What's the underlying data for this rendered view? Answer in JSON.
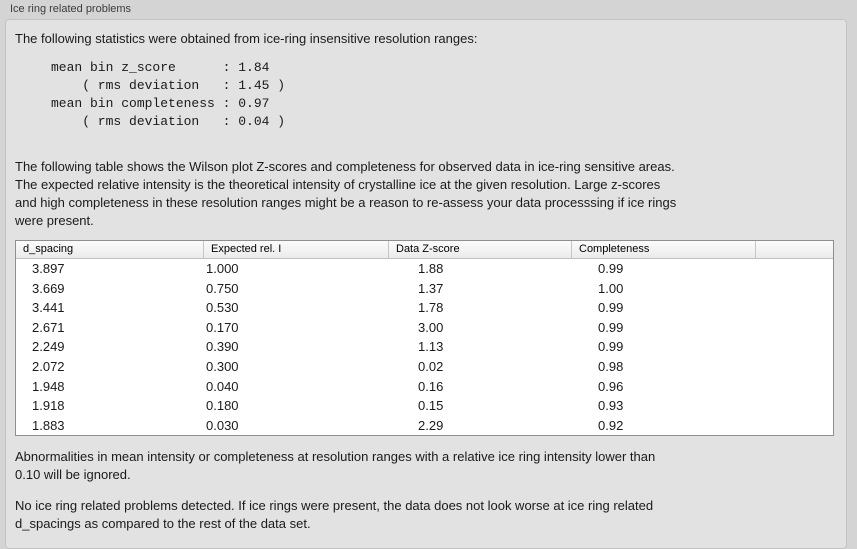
{
  "panel": {
    "title": "Ice ring related problems",
    "intro": "The following statistics were obtained from ice-ring insensitive resolution ranges:",
    "stats_block": "mean bin z_score      : 1.84\n    ( rms deviation   : 1.45 )\nmean bin completeness : 0.97\n    ( rms deviation   : 0.04 )",
    "table_description": "The following table shows the Wilson plot Z-scores and completeness for observed data in ice-ring sensitive areas.\nThe expected relative intensity is the theoretical intensity of crystalline ice at the given resolution. Large z-scores\nand high completeness in these resolution ranges might be a reason to re-assess your data processsing if ice rings\nwere present.",
    "abnormalities_note": "Abnormalities in mean intensity or completeness at resolution ranges with a relative ice ring intensity lower than\n0.10 will be ignored.",
    "conclusion": "No ice ring related problems detected. If ice rings were present, the data does not look worse at ice ring related\nd_spacings as compared to the rest of the data set."
  },
  "stats": {
    "mean_bin_z_score": "1.84",
    "z_score_rms_deviation": "1.45",
    "mean_bin_completeness": "0.97",
    "completeness_rms_deviation": "0.04"
  },
  "table": {
    "columns": [
      "d_spacing",
      "Expected rel. I",
      "Data Z-score",
      "Completeness"
    ],
    "rows": [
      [
        "3.897",
        "1.000",
        "1.88",
        "0.99"
      ],
      [
        "3.669",
        "0.750",
        "1.37",
        "1.00"
      ],
      [
        "3.441",
        "0.530",
        "1.78",
        "0.99"
      ],
      [
        "2.671",
        "0.170",
        "3.00",
        "0.99"
      ],
      [
        "2.249",
        "0.390",
        "1.13",
        "0.99"
      ],
      [
        "2.072",
        "0.300",
        "0.02",
        "0.98"
      ],
      [
        "1.948",
        "0.040",
        "0.16",
        "0.96"
      ],
      [
        "1.918",
        "0.180",
        "0.15",
        "0.93"
      ],
      [
        "1.883",
        "0.030",
        "2.29",
        "0.92"
      ]
    ]
  },
  "colors": {
    "outer_bg": "#d4d4d4",
    "panel_bg": "#e2e2e2",
    "table_bg": "#ffffff",
    "table_border": "#8f8f8f",
    "text": "#1a1a1a"
  }
}
